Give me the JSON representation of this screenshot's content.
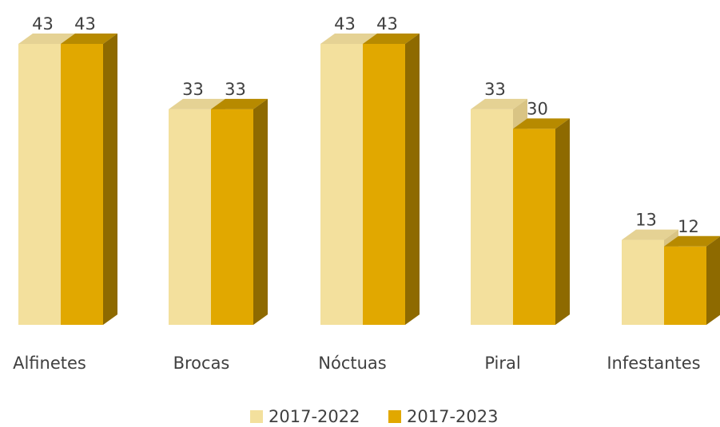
{
  "chart_data": {
    "type": "bar",
    "style": "3d-clustered-column",
    "categories": [
      "Alfinetes",
      "Brocas",
      "Nóctuas",
      "Piral",
      "Infestantes"
    ],
    "series": [
      {
        "name": "2017-2022",
        "values": [
          43,
          33,
          43,
          33,
          13
        ],
        "color": "#F3E09D",
        "top_color": "#E5D294",
        "side_color": "#D9C484"
      },
      {
        "name": "2017-2023",
        "values": [
          43,
          33,
          43,
          30,
          12
        ],
        "color": "#E1A800",
        "top_color": "#B78A00",
        "side_color": "#8E6A00"
      }
    ],
    "title": "",
    "xlabel": "",
    "ylabel": "",
    "ylim": [
      0,
      43
    ],
    "grid": false,
    "data_labels": true,
    "legend_position": "bottom"
  }
}
